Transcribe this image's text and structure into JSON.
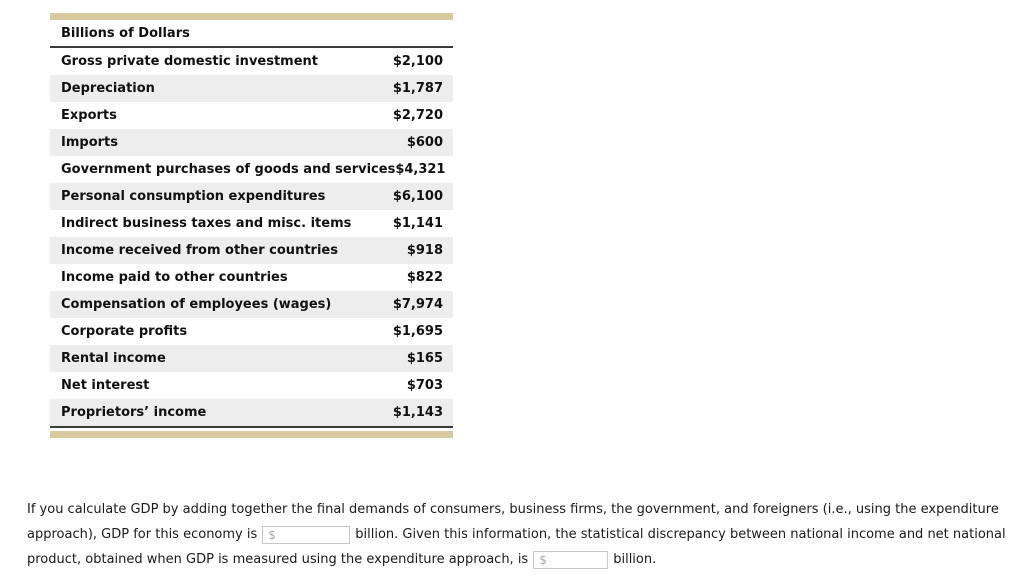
{
  "colors": {
    "accent_bar": "#d9c99e",
    "row_alt_background": "#ededed",
    "table_border": "#3b3b3b",
    "input_border": "#c6c6c6",
    "placeholder_text": "#a9a9a9"
  },
  "table": {
    "header": "Billions of Dollars",
    "rows": [
      {
        "label": "Gross private domestic investment",
        "value": "$2,100"
      },
      {
        "label": "Depreciation",
        "value": "$1,787"
      },
      {
        "label": "Exports",
        "value": "$2,720"
      },
      {
        "label": "Imports",
        "value": "$600"
      },
      {
        "label": "Government purchases of goods and services",
        "value": "$4,321"
      },
      {
        "label": "Personal consumption expenditures",
        "value": "$6,100"
      },
      {
        "label": "Indirect business taxes and misc. items",
        "value": "$1,141"
      },
      {
        "label": "Income received from other countries",
        "value": "$918"
      },
      {
        "label": "Income paid to other countries",
        "value": "$822"
      },
      {
        "label": "Compensation of employees (wages)",
        "value": "$7,974"
      },
      {
        "label": "Corporate profits",
        "value": "$1,695"
      },
      {
        "label": "Rental income",
        "value": "$165"
      },
      {
        "label": "Net interest",
        "value": "$703"
      },
      {
        "label": "Proprietors’ income",
        "value": "$1,143"
      }
    ]
  },
  "question": {
    "line1": "If you calculate GDP by adding together the final demands of consumers, business firms, the government, and foreigners (i.e., using the expenditure",
    "line2_before": "approach), GDP for this economy is",
    "line2_after": "billion. Given this information, the statistical discrepancy between national income and net national",
    "line3_before": "product, obtained when GDP is measured using the expenditure approach, is",
    "line3_after": "billion.",
    "input_placeholder": "$",
    "gdp_input_value": "",
    "discrepancy_input_value": ""
  }
}
